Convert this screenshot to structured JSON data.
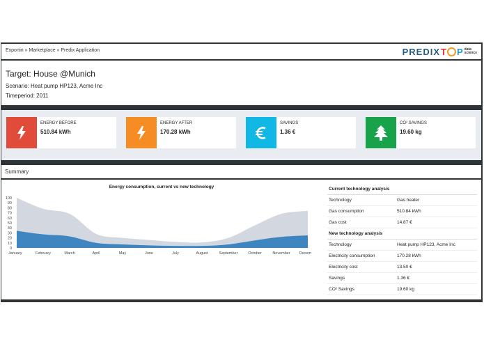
{
  "breadcrumb": "Exportin » Marketplace » Predix Application",
  "logo": {
    "predix": "PREDIX",
    "top_t": "T",
    "top_p": "P",
    "sub1": "data",
    "sub2": "science"
  },
  "target": {
    "title": "Target: House @Munich",
    "scenario": "Scenario: Heat pump HP123, Acme Inc",
    "timeperiod": "Timeperiod: 2011"
  },
  "kpis": [
    {
      "label": "ENERGY BEFORE",
      "value": "510.84 kWh",
      "color": "#e04b3a",
      "icon": "lightning-icon"
    },
    {
      "label": "ENERGY AFTER",
      "value": "170.28 kWh",
      "color": "#f68d24",
      "icon": "lightning-icon"
    },
    {
      "label": "SAVINGS",
      "value": "1.36 €",
      "color": "#11b8e6",
      "icon": "euro-icon"
    },
    {
      "label": "CO² SAVINGS",
      "value": "19.60 kg",
      "color": "#18a24a",
      "icon": "tree-icon"
    }
  ],
  "summary": {
    "title": "Summary"
  },
  "chart_data": {
    "type": "area",
    "title": "Energy consumption, current vs new technology",
    "categories": [
      "January",
      "February",
      "March",
      "April",
      "May",
      "June",
      "July",
      "August",
      "September",
      "October",
      "November",
      "December"
    ],
    "series": [
      {
        "values": [
          100,
          78,
          68,
          28,
          20,
          16,
          12,
          11,
          20,
          45,
          68,
          74
        ],
        "color": "#d3d8e0"
      },
      {
        "values": [
          34,
          27,
          23,
          10,
          7,
          5,
          4,
          4,
          7,
          15,
          22,
          25
        ],
        "color": "#3f86c0"
      }
    ],
    "yticks": [
      0,
      10,
      20,
      30,
      40,
      50,
      60,
      70,
      80,
      90,
      100
    ],
    "ylim": [
      0,
      100
    ]
  },
  "analysis": {
    "current_heading": "Current technology analysis",
    "current_rows": [
      {
        "k": "Technology",
        "v": "Gas heater"
      },
      {
        "k": "Gas consumption",
        "v": "510.84 kWh"
      },
      {
        "k": "Gas cost",
        "v": "14.87 €"
      }
    ],
    "new_heading": "New technology analysis",
    "new_rows": [
      {
        "k": "Technology",
        "v": "Heat pump HP123, Acme Inc"
      },
      {
        "k": "Electricity consumption",
        "v": "170.28 kWh"
      },
      {
        "k": "Electricity cost",
        "v": "13.50 €"
      },
      {
        "k": "Savings",
        "v": "1.36 €"
      },
      {
        "k": "CO² Savings",
        "v": "19.60 kg"
      }
    ]
  }
}
